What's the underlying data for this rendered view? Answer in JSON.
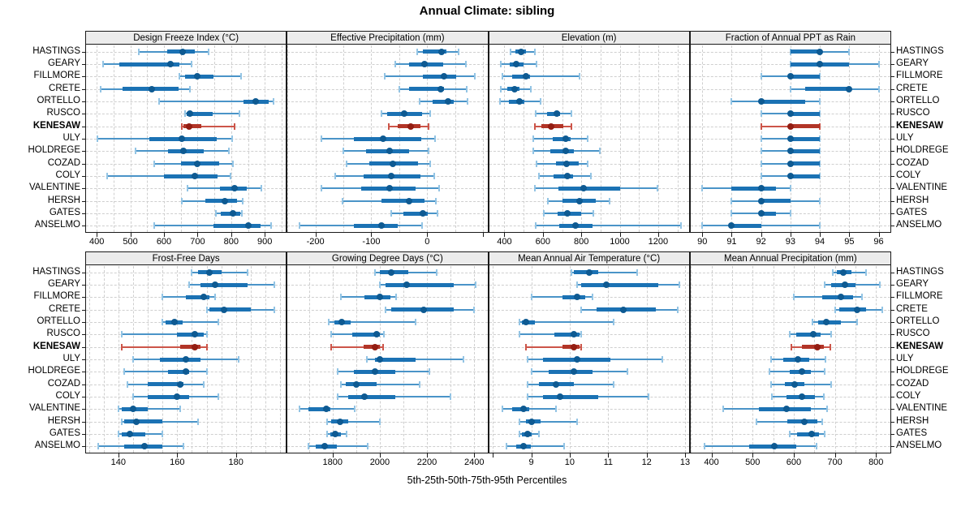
{
  "title": "Annual Climate: sibling",
  "caption": "5th-25th-50th-75th-95th Percentiles",
  "highlight_station": "KENESAW",
  "stations": [
    "HASTINGS",
    "GEARY",
    "FILLMORE",
    "CRETE",
    "ORTELLO",
    "RUSCO",
    "KENESAW",
    "ULY",
    "HOLDREGE",
    "COZAD",
    "COLY",
    "VALENTINE",
    "HERSH",
    "GATES",
    "ANSELMO"
  ],
  "colors": {
    "blue_range": "#4a94c8",
    "blue_cap": "#93c4e4",
    "blue_iqr": "#1b72b4",
    "blue_dot": "#0e5a92",
    "red_range": "#cc5549",
    "red_cap": "#cc5549",
    "red_iqr": "#b23527",
    "red_dot": "#931d12",
    "gridline": "#cfcfcf",
    "strip_bg": "#ececec",
    "panel_border": "#1a1a1a",
    "text": "#000000"
  },
  "chart_data": {
    "type": "dot-whisker-trellis",
    "percentiles": [
      5,
      25,
      50,
      75,
      95
    ],
    "layout_grid": {
      "rows": 2,
      "cols": 4
    },
    "panels": [
      {
        "title": "Design Freeze Index (°C)",
        "row": 0,
        "col": 0,
        "xlim": [
          368,
          963
        ],
        "ticks": [
          400,
          500,
          600,
          700,
          800,
          900
        ],
        "extra_ticks": [],
        "grid_step": 50,
        "values": {
          "HASTINGS": [
            524,
            610,
            656,
            692,
            732
          ],
          "GEARY": [
            418,
            468,
            620,
            646,
            682
          ],
          "FILLMORE": [
            646,
            662,
            698,
            748,
            830
          ],
          "CRETE": [
            412,
            476,
            564,
            644,
            678
          ],
          "ORTELLO": [
            586,
            836,
            874,
            912,
            926
          ],
          "RUSCO": [
            662,
            668,
            678,
            744,
            824
          ],
          "KENESAW": [
            652,
            658,
            674,
            710,
            810
          ],
          "ULY": [
            402,
            556,
            654,
            758,
            802
          ],
          "HOLDREGE": [
            516,
            612,
            658,
            718,
            794
          ],
          "COZAD": [
            572,
            650,
            698,
            764,
            806
          ],
          "COLY": [
            430,
            600,
            692,
            760,
            798
          ],
          "VALENTINE": [
            670,
            766,
            810,
            846,
            890
          ],
          "HERSH": [
            652,
            722,
            782,
            818,
            834
          ],
          "GATES": [
            754,
            770,
            806,
            826,
            832
          ],
          "ANSELMO": [
            572,
            748,
            852,
            888,
            918
          ]
        }
      },
      {
        "title": "Effective Precipitation (mm)",
        "row": 0,
        "col": 1,
        "xlim": [
          -250,
          108
        ],
        "ticks": [
          -200,
          -100,
          0
        ],
        "extra_ticks": [
          100
        ],
        "grid_step": 50,
        "values": {
          "HASTINGS": [
            -18,
            -8,
            26,
            35,
            56
          ],
          "GEARY": [
            -57,
            -32,
            -5,
            29,
            69
          ],
          "FILLMORE": [
            -76,
            -8,
            30,
            52,
            86
          ],
          "CRETE": [
            -50,
            -32,
            24,
            30,
            71
          ],
          "ORTELLO": [
            -14,
            10,
            38,
            48,
            72
          ],
          "RUSCO": [
            -81,
            -71,
            -41,
            -9,
            5
          ],
          "KENESAW": [
            -68,
            -52,
            -29,
            -12,
            2
          ],
          "ULY": [
            -190,
            -131,
            -79,
            -10,
            14
          ],
          "HOLDREGE": [
            -150,
            -110,
            -67,
            -33,
            2
          ],
          "COZAD": [
            -144,
            -103,
            -62,
            -17,
            5
          ],
          "COLY": [
            -165,
            -114,
            -65,
            -12,
            13
          ],
          "VALENTINE": [
            -189,
            -118,
            -67,
            -20,
            21
          ],
          "HERSH": [
            -152,
            -81,
            -33,
            -5,
            16
          ],
          "GATES": [
            -65,
            -43,
            -8,
            1,
            19
          ],
          "ANSELMO": [
            -229,
            -131,
            -81,
            -52,
            -9
          ]
        }
      },
      {
        "title": "Elevation (m)",
        "row": 0,
        "col": 2,
        "xlim": [
          320,
          1360
        ],
        "ticks": [
          400,
          600,
          800,
          1000,
          1200
        ],
        "extra_ticks": [],
        "grid_step": 100,
        "values": {
          "HASTINGS": [
            431,
            457,
            486,
            514,
            560
          ],
          "GEARY": [
            381,
            429,
            463,
            500,
            567
          ],
          "FILLMORE": [
            389,
            439,
            510,
            534,
            789
          ],
          "CRETE": [
            381,
            414,
            453,
            477,
            539
          ],
          "ORTELLO": [
            377,
            424,
            477,
            506,
            586
          ],
          "RUSCO": [
            563,
            620,
            671,
            691,
            749
          ],
          "KENESAW": [
            557,
            591,
            643,
            706,
            749
          ],
          "ULY": [
            550,
            653,
            717,
            746,
            834
          ],
          "HOLDREGE": [
            549,
            639,
            717,
            763,
            896
          ],
          "COZAD": [
            567,
            667,
            724,
            786,
            834
          ],
          "COLY": [
            581,
            657,
            729,
            757,
            849
          ],
          "VALENTINE": [
            557,
            681,
            810,
            1000,
            1196
          ],
          "HERSH": [
            624,
            700,
            791,
            877,
            949
          ],
          "GATES": [
            606,
            677,
            729,
            800,
            863
          ],
          "ANSELMO": [
            563,
            686,
            771,
            857,
            1320
          ]
        }
      },
      {
        "title": "Fraction of Annual PPT as Rain",
        "row": 0,
        "col": 3,
        "xlim": [
          89.6,
          96.4
        ],
        "ticks": [
          90,
          91,
          92,
          93,
          94,
          95,
          96
        ],
        "extra_ticks": [],
        "grid_step": 1,
        "values": {
          "HASTINGS": [
            93,
            93,
            94,
            94,
            95
          ],
          "GEARY": [
            93,
            93,
            94,
            95,
            96
          ],
          "FILLMORE": [
            92,
            93,
            93,
            94,
            94
          ],
          "CRETE": [
            93,
            93.5,
            95,
            95,
            96
          ],
          "ORTELLO": [
            91,
            92,
            92,
            93.5,
            94
          ],
          "RUSCO": [
            92,
            93,
            93,
            94,
            94
          ],
          "KENESAW": [
            92,
            93,
            93,
            94,
            94
          ],
          "ULY": [
            92,
            93,
            93,
            94,
            94
          ],
          "HOLDREGE": [
            92,
            93,
            93,
            94,
            94
          ],
          "COZAD": [
            92,
            93,
            93,
            94,
            94
          ],
          "COLY": [
            92,
            93,
            93,
            94,
            94
          ],
          "VALENTINE": [
            90,
            91,
            92,
            92.5,
            93
          ],
          "HERSH": [
            91,
            92,
            92,
            93,
            94
          ],
          "GATES": [
            91,
            92,
            92,
            92.5,
            93
          ],
          "ANSELMO": [
            90,
            91,
            91,
            92,
            94
          ]
        }
      },
      {
        "title": "Frost-Free Days",
        "row": 1,
        "col": 0,
        "xlim": [
          129,
          197
        ],
        "ticks": [
          140,
          160,
          180
        ],
        "extra_ticks": [],
        "grid_step": 5,
        "values": {
          "HASTINGS": [
            165,
            167,
            171,
            175,
            184
          ],
          "GEARY": [
            164,
            168,
            173,
            184,
            193
          ],
          "FILLMORE": [
            155,
            163,
            169,
            171,
            173
          ],
          "CRETE": [
            170,
            171,
            176,
            185,
            193
          ],
          "ORTELLO": [
            155,
            156,
            159,
            162,
            174
          ],
          "RUSCO": [
            141,
            160,
            166,
            169,
            170
          ],
          "KENESAW": [
            141,
            161,
            166,
            168,
            170
          ],
          "ULY": [
            145,
            154,
            163,
            168,
            181
          ],
          "HOLDREGE": [
            142,
            157,
            163,
            164,
            170
          ],
          "COZAD": [
            143,
            150,
            161,
            162,
            169
          ],
          "COLY": [
            145,
            150,
            160,
            164,
            174
          ],
          "VALENTINE": [
            140,
            141,
            145,
            150,
            161
          ],
          "HERSH": [
            141,
            142,
            146,
            155,
            167
          ],
          "GATES": [
            140,
            141,
            144,
            149,
            155
          ],
          "ANSELMO": [
            133,
            142,
            149,
            155,
            162
          ]
        }
      },
      {
        "title": "Growing Degree Days (°C)",
        "row": 1,
        "col": 1,
        "xlim": [
          1609,
          2456
        ],
        "ticks": [
          1800,
          2000,
          2200,
          2400
        ],
        "extra_ticks": [],
        "grid_step": 100,
        "values": {
          "HASTINGS": [
            1980,
            2000,
            2050,
            2120,
            2240
          ],
          "GEARY": [
            2000,
            2025,
            2115,
            2315,
            2405
          ],
          "FILLMORE": [
            1835,
            1935,
            2000,
            2045,
            2070
          ],
          "CRETE": [
            2025,
            2050,
            2185,
            2315,
            2400
          ],
          "ORTELLO": [
            1785,
            1807,
            1840,
            1875,
            2150
          ],
          "RUSCO": [
            1795,
            1885,
            1985,
            2000,
            2017
          ],
          "KENESAW": [
            1795,
            1930,
            1980,
            2000,
            2015
          ],
          "ULY": [
            1945,
            1980,
            2000,
            2150,
            2355
          ],
          "HOLDREGE": [
            1820,
            1890,
            1980,
            2065,
            2210
          ],
          "COZAD": [
            1835,
            1855,
            1900,
            1985,
            2170
          ],
          "COLY": [
            1820,
            1865,
            1935,
            2065,
            2300
          ],
          "VALENTINE": [
            1660,
            1697,
            1773,
            1790,
            1895
          ],
          "HERSH": [
            1777,
            1795,
            1830,
            1865,
            2000
          ],
          "GATES": [
            1777,
            1790,
            1810,
            1835,
            1860
          ],
          "ANSELMO": [
            1697,
            1727,
            1765,
            1818,
            1950
          ]
        }
      },
      {
        "title": "Mean Annual Air Temperature (°C)",
        "row": 1,
        "col": 2,
        "xlim": [
          7.9,
          13.1
        ],
        "ticks": [
          9,
          10,
          11,
          12,
          13
        ],
        "extra_ticks": [
          8
        ],
        "grid_step": 1,
        "values": {
          "HASTINGS": [
            10.05,
            10.1,
            10.5,
            10.75,
            11.75
          ],
          "GEARY": [
            10.2,
            10.3,
            10.95,
            12.3,
            12.85
          ],
          "FILLMORE": [
            9.0,
            9.8,
            10.2,
            10.4,
            10.6
          ],
          "CRETE": [
            10.3,
            10.7,
            11.4,
            12.25,
            12.8
          ],
          "ORTELLO": [
            8.7,
            8.75,
            8.85,
            9.1,
            11.15
          ],
          "RUSCO": [
            8.7,
            9.6,
            10.1,
            10.25,
            10.3
          ],
          "KENESAW": [
            8.85,
            9.8,
            10.1,
            10.25,
            10.3
          ],
          "ULY": [
            8.9,
            9.3,
            10.2,
            11.05,
            12.4
          ],
          "HOLDREGE": [
            9.0,
            9.45,
            10.1,
            10.6,
            11.5
          ],
          "COZAD": [
            8.9,
            9.2,
            9.65,
            10.1,
            11.15
          ],
          "COLY": [
            8.9,
            9.3,
            9.75,
            10.75,
            12.05
          ],
          "VALENTINE": [
            8.25,
            8.5,
            8.8,
            8.95,
            9.65
          ],
          "HERSH": [
            8.7,
            8.85,
            9.0,
            9.25,
            10.2
          ],
          "GATES": [
            8.7,
            8.75,
            8.9,
            9.0,
            9.2
          ],
          "ANSELMO": [
            8.35,
            8.6,
            8.8,
            9.0,
            9.85
          ]
        }
      },
      {
        "title": "Mean Annual Precipitation (mm)",
        "row": 1,
        "col": 3,
        "xlim": [
          349,
          835
        ],
        "ticks": [
          400,
          500,
          600,
          700,
          800
        ],
        "extra_ticks": [],
        "grid_step": 50,
        "values": {
          "HASTINGS": [
            695,
            705,
            720,
            740,
            775
          ],
          "GEARY": [
            675,
            690,
            725,
            750,
            810
          ],
          "FILLMORE": [
            600,
            670,
            715,
            745,
            765
          ],
          "CRETE": [
            700,
            710,
            755,
            775,
            815
          ],
          "ORTELLO": [
            645,
            660,
            680,
            715,
            755
          ],
          "RUSCO": [
            590,
            607,
            648,
            665,
            690
          ],
          "KENESAW": [
            595,
            620,
            658,
            674,
            688
          ],
          "ULY": [
            545,
            575,
            610,
            637,
            678
          ],
          "HOLDREGE": [
            540,
            590,
            620,
            642,
            676
          ],
          "COZAD": [
            545,
            578,
            603,
            626,
            690
          ],
          "COLY": [
            546,
            583,
            620,
            652,
            673
          ],
          "VALENTINE": [
            429,
            516,
            582,
            642,
            681
          ],
          "HERSH": [
            509,
            584,
            626,
            658,
            669
          ],
          "GATES": [
            590,
            609,
            644,
            661,
            675
          ],
          "ANSELMO": [
            383,
            492,
            553,
            605,
            655
          ]
        }
      }
    ]
  }
}
